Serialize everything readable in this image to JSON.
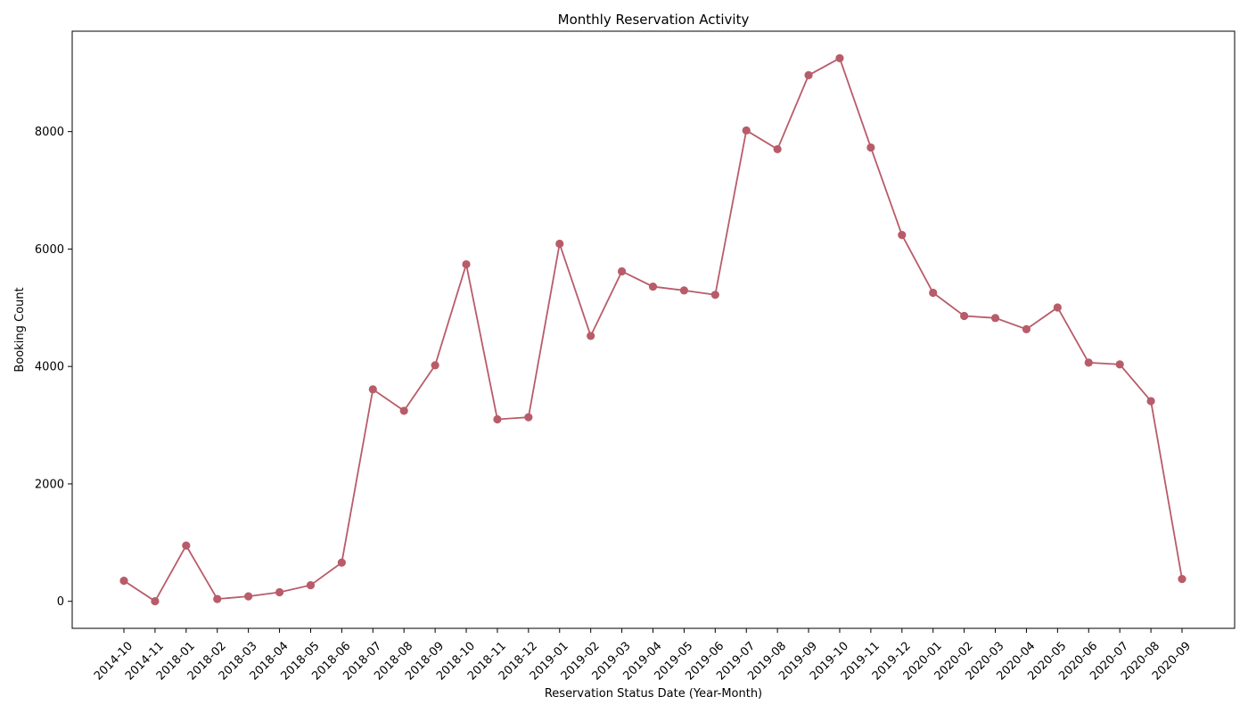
{
  "chart_data": {
    "type": "line",
    "title": "Monthly Reservation Activity",
    "xlabel": "Reservation Status Date (Year-Month)",
    "ylabel": "Booking Count",
    "categories": [
      "2014-10",
      "2014-11",
      "2018-01",
      "2018-02",
      "2018-03",
      "2018-04",
      "2018-05",
      "2018-06",
      "2018-07",
      "2018-08",
      "2018-09",
      "2018-10",
      "2018-11",
      "2018-12",
      "2019-01",
      "2019-02",
      "2019-03",
      "2019-04",
      "2019-05",
      "2019-06",
      "2019-07",
      "2019-08",
      "2019-09",
      "2019-10",
      "2019-11",
      "2019-12",
      "2020-01",
      "2020-02",
      "2020-03",
      "2020-04",
      "2020-05",
      "2020-06",
      "2020-07",
      "2020-08",
      "2020-09"
    ],
    "series": [
      {
        "values": [
          350,
          2,
          950,
          40,
          85,
          155,
          275,
          660,
          3610,
          3245,
          4020,
          5740,
          3100,
          3135,
          6090,
          4520,
          5620,
          5360,
          5295,
          5220,
          8020,
          7700,
          8960,
          9250,
          7730,
          6240,
          5255,
          4860,
          4825,
          4635,
          5005,
          4065,
          4035,
          3410,
          380
        ]
      }
    ],
    "yticks": [
      0,
      2000,
      4000,
      6000,
      8000
    ],
    "ylim": [
      -460,
      9710
    ],
    "grid": false,
    "legend": "none",
    "line_color": "#b85c69",
    "marker_color": "#b85c69"
  }
}
